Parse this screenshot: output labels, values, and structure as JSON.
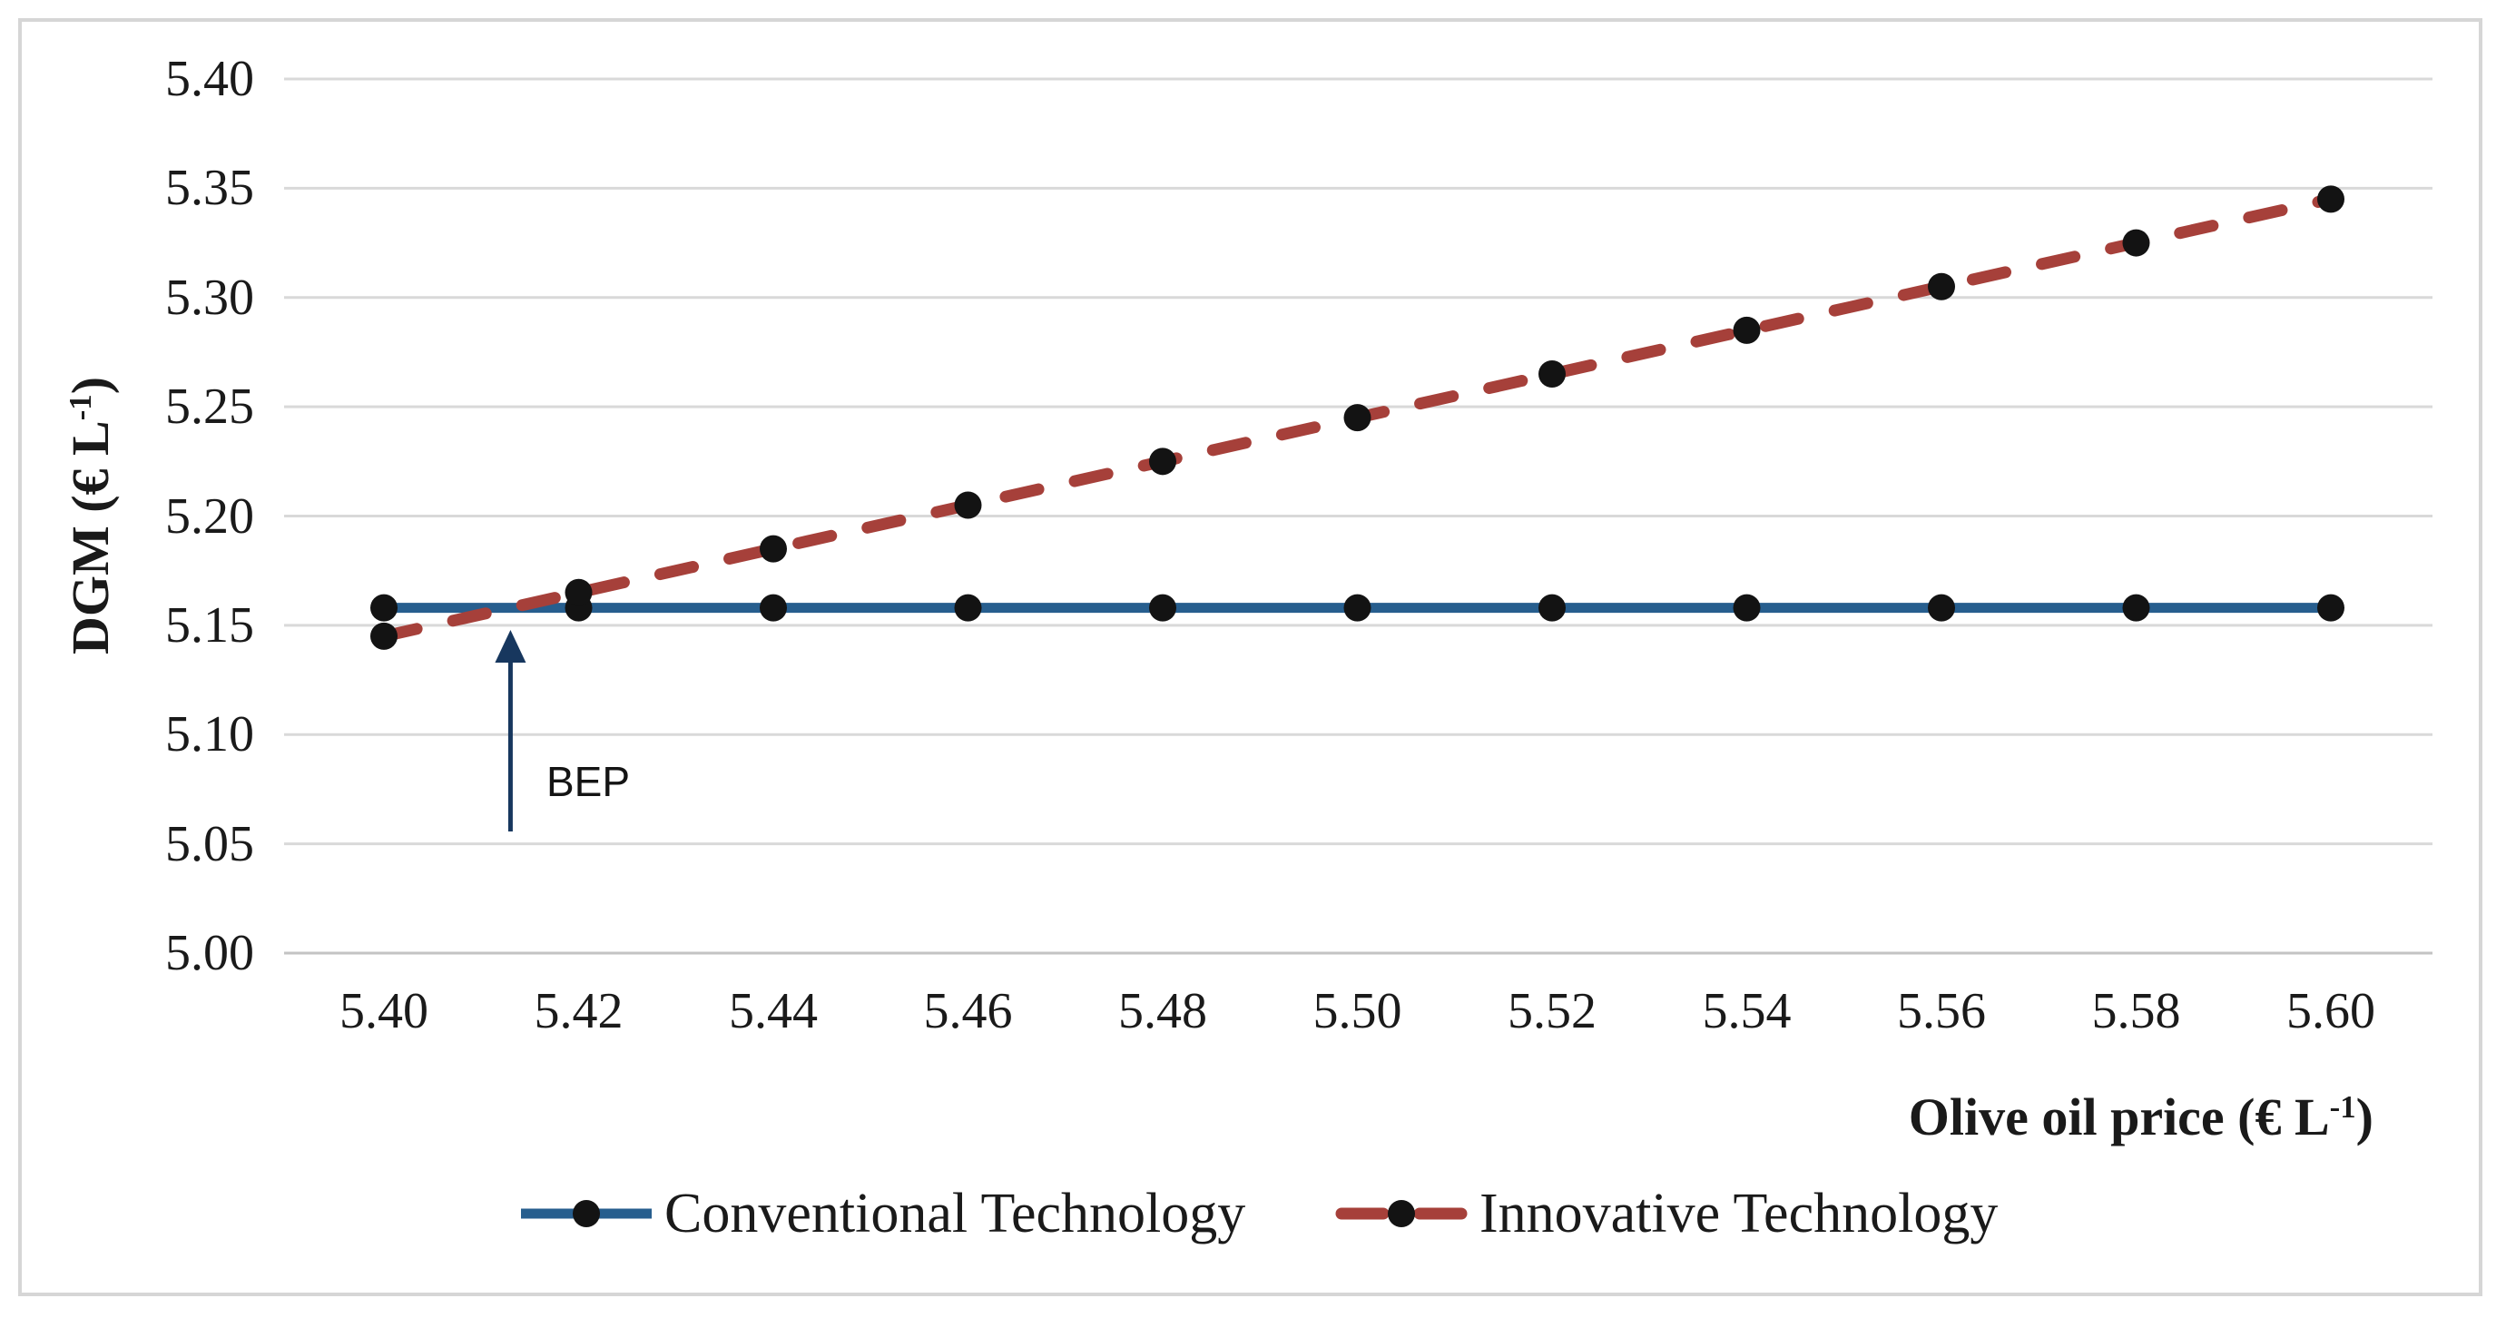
{
  "chart_data": {
    "type": "line",
    "xlabel": "Olive oil price (€ L-1)",
    "ylabel": "DGM (€ L-1)",
    "xlabel_parts": {
      "text": "Olive oil price (€ L",
      "sup": "-1",
      "end": ")"
    },
    "ylabel_parts": {
      "text": "DGM (€ L",
      "sup": "-1",
      "end": ")"
    },
    "x": [
      5.4,
      5.42,
      5.44,
      5.46,
      5.48,
      5.5,
      5.52,
      5.54,
      5.56,
      5.58,
      5.6
    ],
    "x_tick_labels": [
      "5.40",
      "5.42",
      "5.44",
      "5.46",
      "5.48",
      "5.50",
      "5.52",
      "5.54",
      "5.56",
      "5.58",
      "5.60"
    ],
    "y_tick_labels": [
      "5.00",
      "5.05",
      "5.10",
      "5.15",
      "5.20",
      "5.25",
      "5.30",
      "5.35",
      "5.40"
    ],
    "y_tick_values": [
      5.0,
      5.05,
      5.1,
      5.15,
      5.2,
      5.25,
      5.3,
      5.35,
      5.4
    ],
    "xlim": [
      5.4,
      5.6
    ],
    "ylim": [
      5.0,
      5.4
    ],
    "grid": "horizontal",
    "legend_position": "bottom",
    "series": [
      {
        "name": "Conventional Technology",
        "style": "solid",
        "color": "#275e8e",
        "marker": "circle",
        "marker_color": "#131313",
        "values": [
          5.158,
          5.158,
          5.158,
          5.158,
          5.158,
          5.158,
          5.158,
          5.158,
          5.158,
          5.158,
          5.158
        ]
      },
      {
        "name": "Innovative Technology",
        "style": "dashed",
        "color": "#a6403a",
        "marker": "circle",
        "marker_color": "#131313",
        "values": [
          5.145,
          5.165,
          5.185,
          5.205,
          5.225,
          5.245,
          5.265,
          5.285,
          5.305,
          5.325,
          5.345
        ]
      }
    ],
    "annotation": {
      "label": "BEP",
      "x": 5.413,
      "arrow_color": "#17375e"
    },
    "colors": {
      "gridline": "#d9d9d9",
      "axis_line": "#c3c3c3",
      "text": "#1a1a1a",
      "frame_border": "#d6d6d6",
      "background": "#ffffff"
    }
  }
}
